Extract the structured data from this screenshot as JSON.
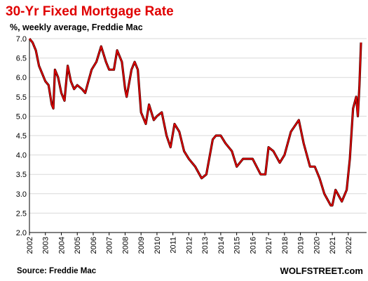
{
  "chart_data": {
    "type": "line",
    "title": "30-Yr Fixed Mortgage Rate",
    "subtitle": "%, weekly average, Freddie Mac",
    "source": "Source: Freddie Mac",
    "brand": "WOLFSTREET.com",
    "color": "#e00000",
    "grid": true,
    "xlim": [
      2002,
      2023.15
    ],
    "xticks": [
      2002,
      2003,
      2004,
      2005,
      2006,
      2007,
      2008,
      2009,
      2010,
      2011,
      2012,
      2013,
      2014,
      2015,
      2016,
      2017,
      2018,
      2019,
      2020,
      2021,
      2022
    ],
    "ylim": [
      2.0,
      7.0
    ],
    "yticks": [
      {
        "value": 2.0,
        "label": "2.0"
      },
      {
        "value": 2.5,
        "label": "2.5"
      },
      {
        "value": 3.0,
        "label": "3.0"
      },
      {
        "value": 3.5,
        "label": "3.5"
      },
      {
        "value": 4.0,
        "label": "4.0"
      },
      {
        "value": 4.5,
        "label": "4.5"
      },
      {
        "value": 5.0,
        "label": "5.0"
      },
      {
        "value": 5.5,
        "label": "5.5"
      },
      {
        "value": 6.0,
        "label": "6.0"
      },
      {
        "value": 6.5,
        "label": "6.5"
      },
      {
        "value": 7.0,
        "label": "7.0"
      }
    ],
    "x": [
      2002.0,
      2002.2,
      2002.4,
      2002.6,
      2002.8,
      2003.0,
      2003.2,
      2003.4,
      2003.5,
      2003.6,
      2003.8,
      2004.0,
      2004.2,
      2004.4,
      2004.6,
      2004.8,
      2005.0,
      2005.3,
      2005.5,
      2005.7,
      2005.9,
      2006.2,
      2006.5,
      2006.8,
      2007.0,
      2007.3,
      2007.5,
      2007.8,
      2008.0,
      2008.1,
      2008.4,
      2008.6,
      2008.8,
      2009.0,
      2009.3,
      2009.5,
      2009.8,
      2010.0,
      2010.3,
      2010.6,
      2010.85,
      2011.1,
      2011.4,
      2011.7,
      2012.0,
      2012.4,
      2012.8,
      2013.1,
      2013.5,
      2013.7,
      2014.0,
      2014.3,
      2014.7,
      2015.0,
      2015.4,
      2015.7,
      2016.0,
      2016.5,
      2016.8,
      2017.0,
      2017.3,
      2017.7,
      2018.0,
      2018.4,
      2018.9,
      2019.2,
      2019.6,
      2019.9,
      2020.2,
      2020.5,
      2020.9,
      2021.0,
      2021.2,
      2021.6,
      2021.9,
      2022.1,
      2022.3,
      2022.5,
      2022.6,
      2022.7,
      2022.8
    ],
    "values": [
      7.0,
      6.9,
      6.7,
      6.3,
      6.1,
      5.9,
      5.8,
      5.3,
      5.2,
      6.2,
      6.0,
      5.6,
      5.4,
      6.3,
      5.9,
      5.7,
      5.8,
      5.7,
      5.6,
      5.9,
      6.2,
      6.4,
      6.8,
      6.4,
      6.2,
      6.2,
      6.7,
      6.4,
      5.7,
      5.5,
      6.2,
      6.4,
      6.2,
      5.1,
      4.8,
      5.3,
      4.9,
      5.0,
      5.1,
      4.5,
      4.2,
      4.8,
      4.6,
      4.1,
      3.9,
      3.7,
      3.4,
      3.5,
      4.4,
      4.5,
      4.5,
      4.3,
      4.1,
      3.7,
      3.9,
      3.9,
      3.9,
      3.5,
      3.5,
      4.2,
      4.1,
      3.8,
      4.0,
      4.6,
      4.9,
      4.3,
      3.7,
      3.7,
      3.4,
      3.0,
      2.7,
      2.7,
      3.1,
      2.8,
      3.1,
      3.9,
      5.2,
      5.5,
      5.0,
      5.8,
      6.9
    ]
  }
}
